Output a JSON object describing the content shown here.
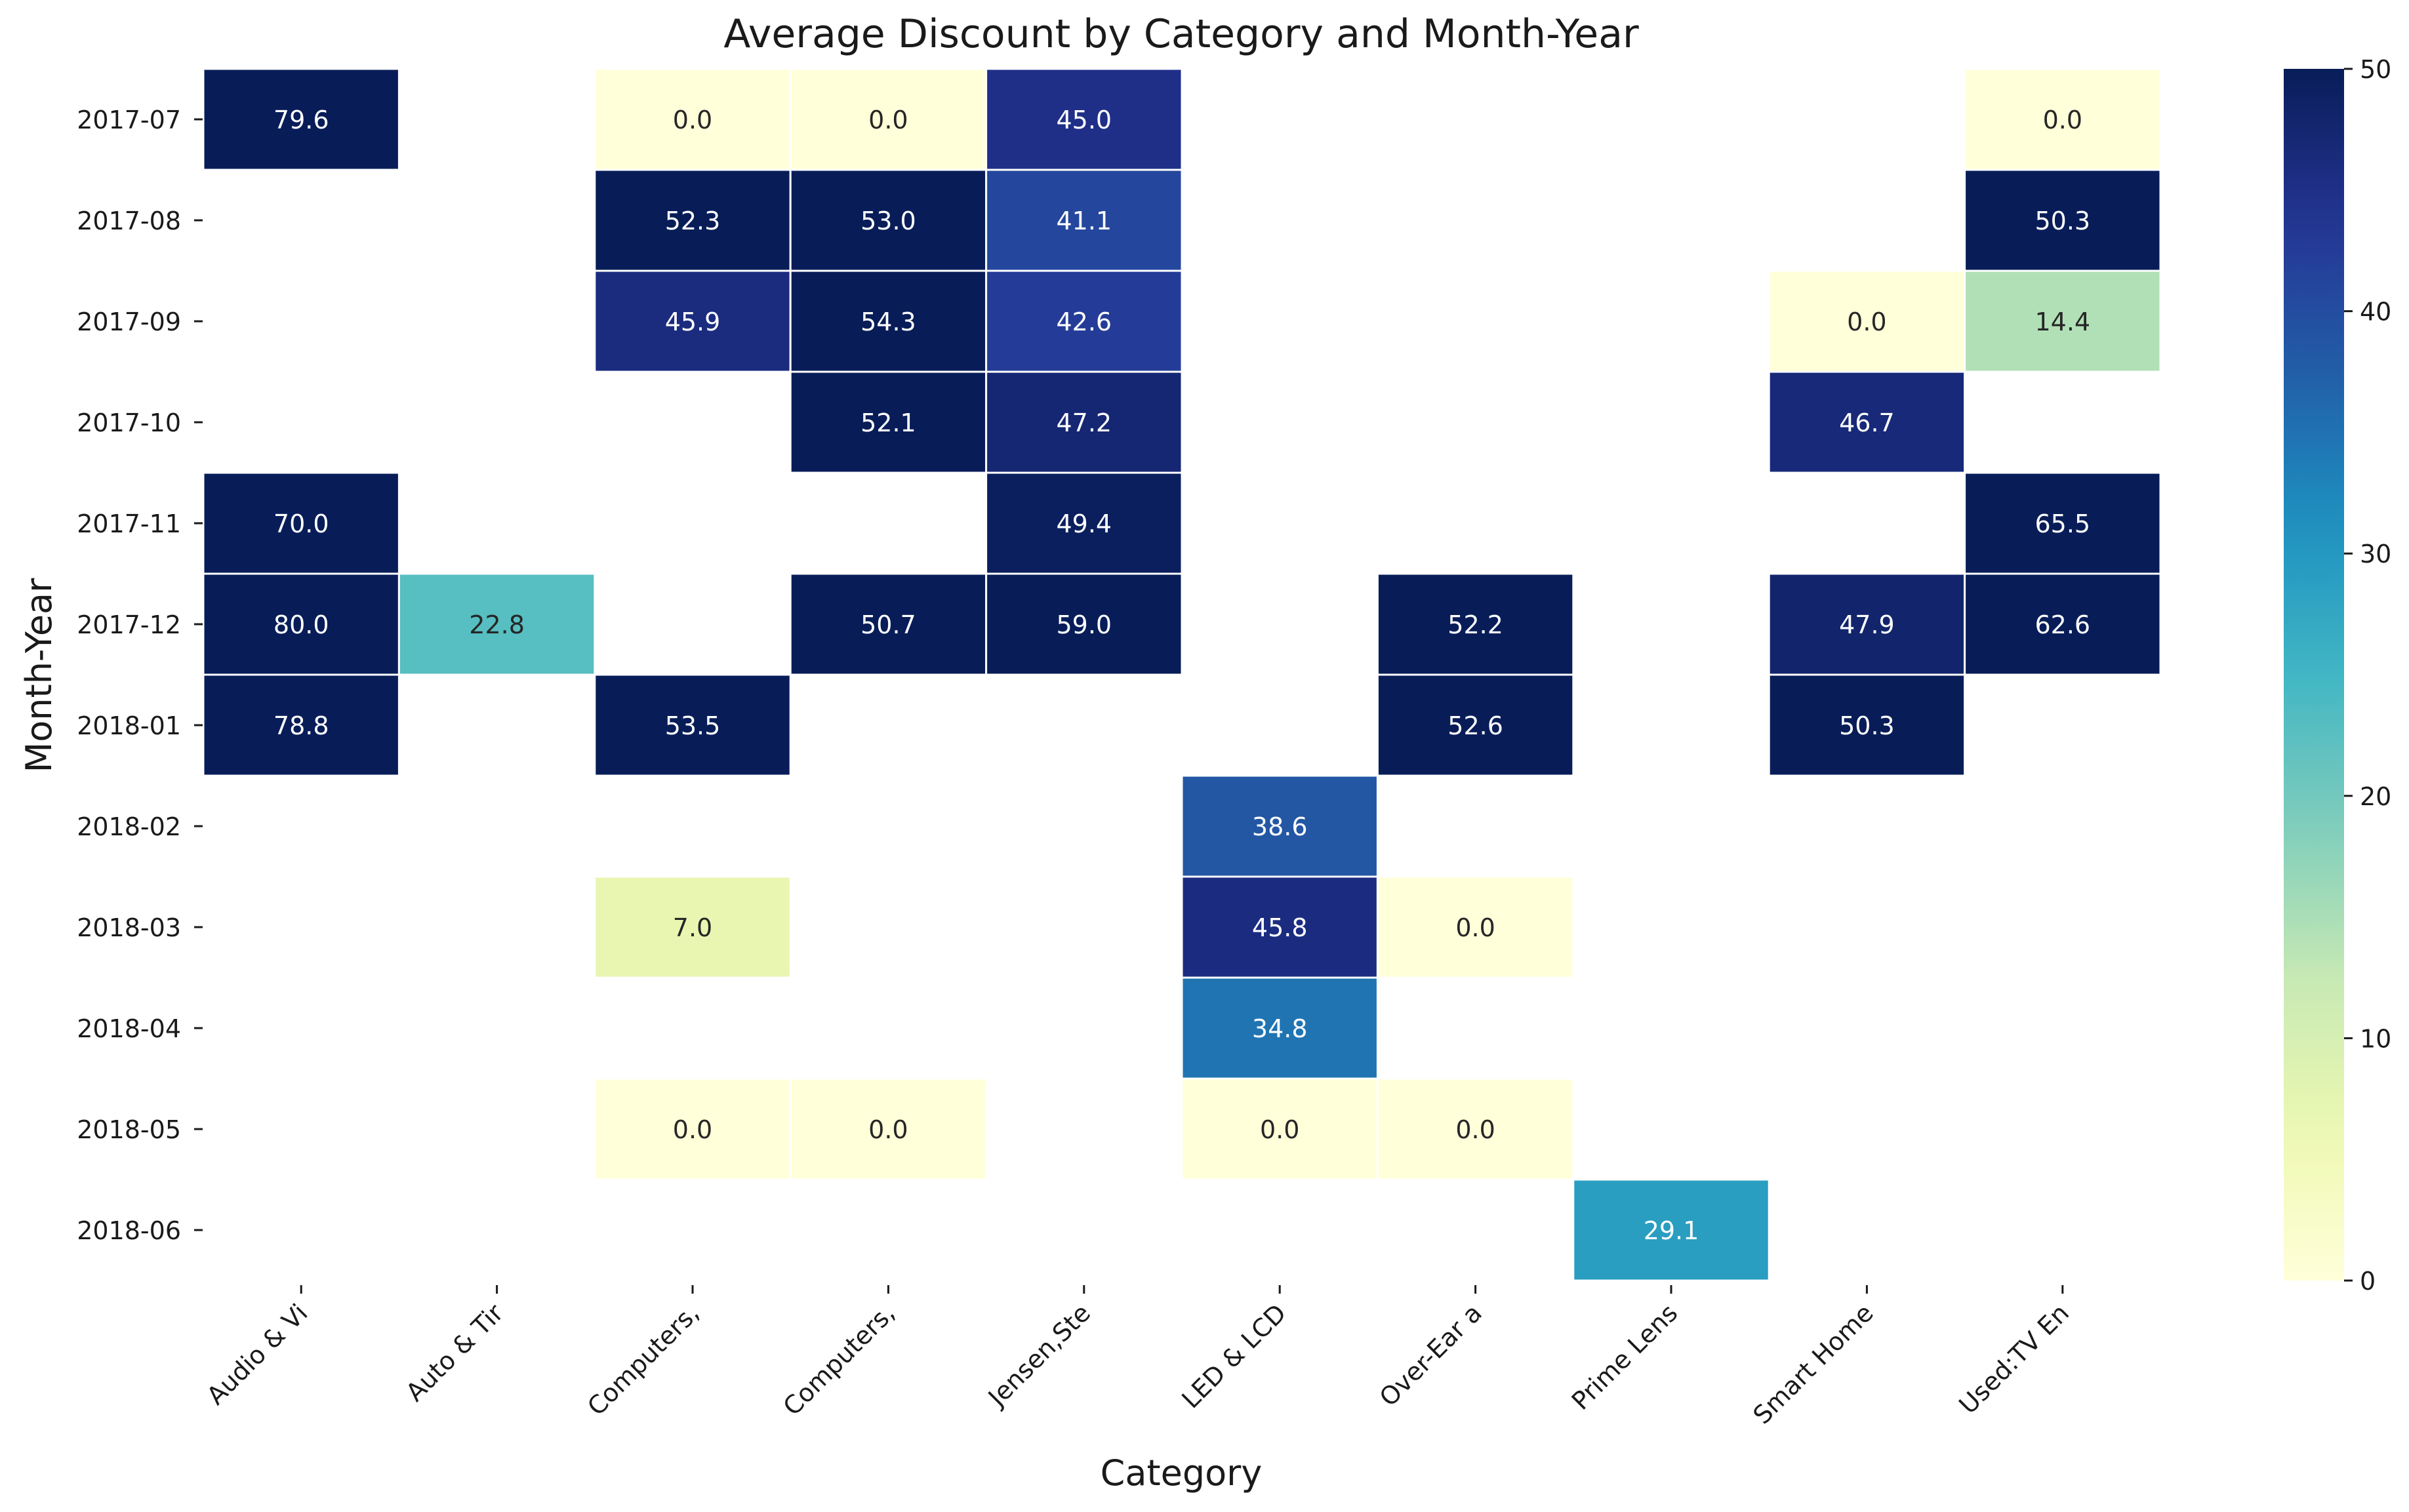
{
  "chart_data": {
    "type": "heatmap",
    "title": "Average Discount by Category and Month-Year",
    "xlabel": "Category",
    "ylabel": "Month-Year",
    "x_categories": [
      "Audio & Vi",
      "Auto & Tir",
      "Computers,",
      "Computers,",
      "Jensen,Ste",
      "LED & LCD",
      "Over-Ear a",
      "Prime Lens",
      "Smart Home",
      "Used:TV En"
    ],
    "y_categories": [
      "2017-07",
      "2017-08",
      "2017-09",
      "2017-10",
      "2017-11",
      "2017-12",
      "2018-01",
      "2018-02",
      "2018-03",
      "2018-04",
      "2018-05",
      "2018-06"
    ],
    "values": [
      [
        79.6,
        null,
        0.0,
        0.0,
        45.0,
        null,
        null,
        null,
        null,
        0.0
      ],
      [
        null,
        null,
        52.3,
        53.0,
        41.1,
        null,
        null,
        null,
        null,
        50.3
      ],
      [
        null,
        null,
        45.9,
        54.3,
        42.6,
        null,
        null,
        null,
        0.0,
        14.4
      ],
      [
        null,
        null,
        null,
        52.1,
        47.2,
        null,
        null,
        null,
        46.7,
        null
      ],
      [
        70.0,
        null,
        null,
        null,
        49.4,
        null,
        null,
        null,
        null,
        65.5
      ],
      [
        80.0,
        22.8,
        null,
        50.7,
        59.0,
        null,
        52.2,
        null,
        47.9,
        62.6
      ],
      [
        78.8,
        null,
        53.5,
        null,
        null,
        null,
        52.6,
        null,
        50.3,
        null
      ],
      [
        null,
        null,
        null,
        null,
        null,
        38.6,
        null,
        null,
        null,
        null
      ],
      [
        null,
        null,
        7.0,
        null,
        null,
        45.8,
        0.0,
        null,
        null,
        null
      ],
      [
        null,
        null,
        null,
        null,
        null,
        34.8,
        null,
        null,
        null,
        null
      ],
      [
        null,
        null,
        0.0,
        0.0,
        null,
        0.0,
        0.0,
        null,
        null,
        null
      ],
      [
        null,
        null,
        null,
        null,
        null,
        null,
        null,
        29.1,
        null,
        null
      ]
    ],
    "colorscale": "YlGnBu",
    "vmin": 0,
    "vmax": 50,
    "colorbar_ticks": [
      0,
      10,
      20,
      30,
      40,
      50
    ],
    "grid": false,
    "legend": "colorbar-right"
  }
}
